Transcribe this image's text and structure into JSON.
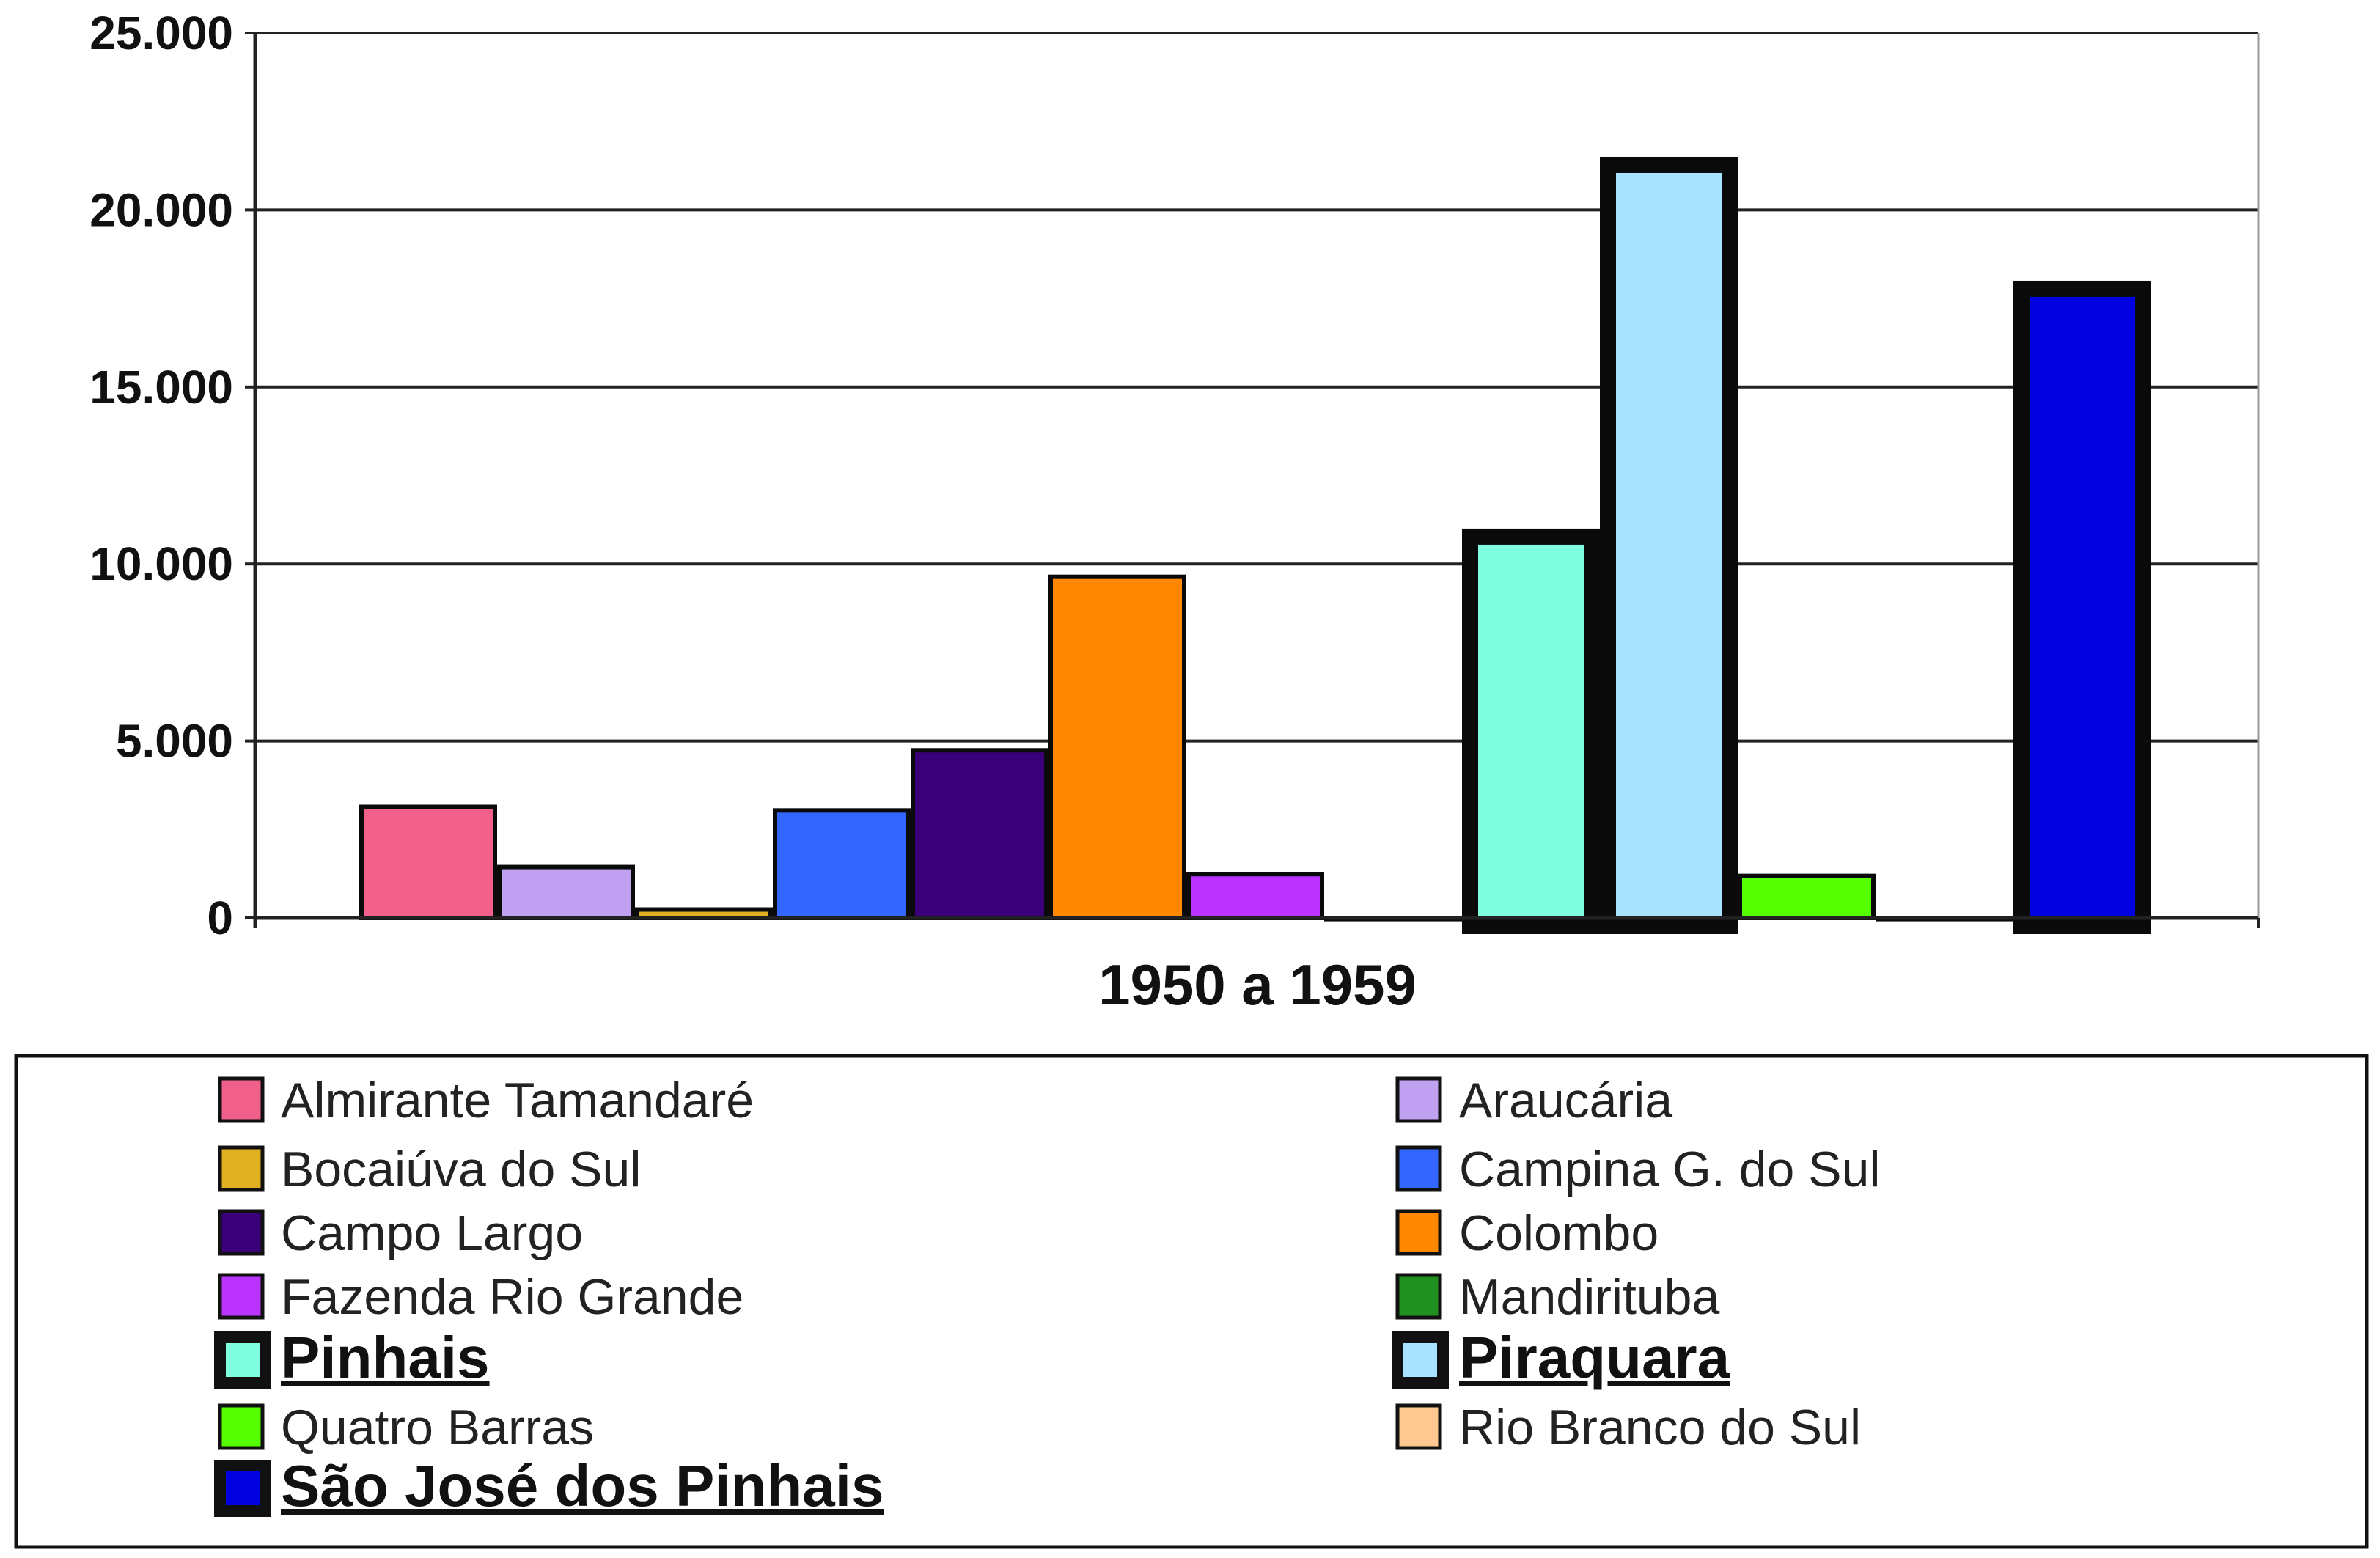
{
  "chart_data": {
    "type": "bar",
    "title": "",
    "xlabel": "",
    "ylabel": "",
    "categories": [
      "1950 a 1959"
    ],
    "ylim": [
      0,
      25000
    ],
    "yticks": [
      "0",
      "5.000",
      "10.000",
      "15.000",
      "20.000",
      "25.000"
    ],
    "ytick_values": [
      0,
      5000,
      10000,
      15000,
      20000,
      25000
    ],
    "grid": true,
    "legend_position": "bottom",
    "series": [
      {
        "name": "Almirante Tamandaré",
        "values": [
          3200
        ],
        "color": "#f0608a",
        "highlight": false
      },
      {
        "name": "Araucária",
        "values": [
          1500
        ],
        "color": "#c0a0f0",
        "highlight": false
      },
      {
        "name": "Bocaiúva do Sul",
        "values": [
          300
        ],
        "color": "#e0b020",
        "highlight": false
      },
      {
        "name": "Campina G. do Sul",
        "values": [
          3100
        ],
        "color": "#3366ff",
        "highlight": false
      },
      {
        "name": "Campo Largo",
        "values": [
          4800
        ],
        "color": "#3a007a",
        "highlight": false
      },
      {
        "name": "Colombo",
        "values": [
          9700
        ],
        "color": "#ff8800",
        "highlight": false
      },
      {
        "name": "Fazenda Rio Grande",
        "values": [
          1300
        ],
        "color": "#bb33ff",
        "highlight": false
      },
      {
        "name": "Mandirituba",
        "values": [
          50
        ],
        "color": "#209020",
        "highlight": false
      },
      {
        "name": "Pinhais",
        "values": [
          11000
        ],
        "color": "#80ffe0",
        "highlight": true
      },
      {
        "name": "Piraquara",
        "values": [
          21500
        ],
        "color": "#a8e4ff",
        "highlight": true
      },
      {
        "name": "Quatro Barras",
        "values": [
          1250
        ],
        "color": "#55ff00",
        "highlight": false
      },
      {
        "name": "Rio Branco do Sul",
        "values": [
          50
        ],
        "color": "#ffc890",
        "highlight": false
      },
      {
        "name": "São José dos Pinhais",
        "values": [
          18000
        ],
        "color": "#0000e0",
        "highlight": true
      }
    ]
  }
}
